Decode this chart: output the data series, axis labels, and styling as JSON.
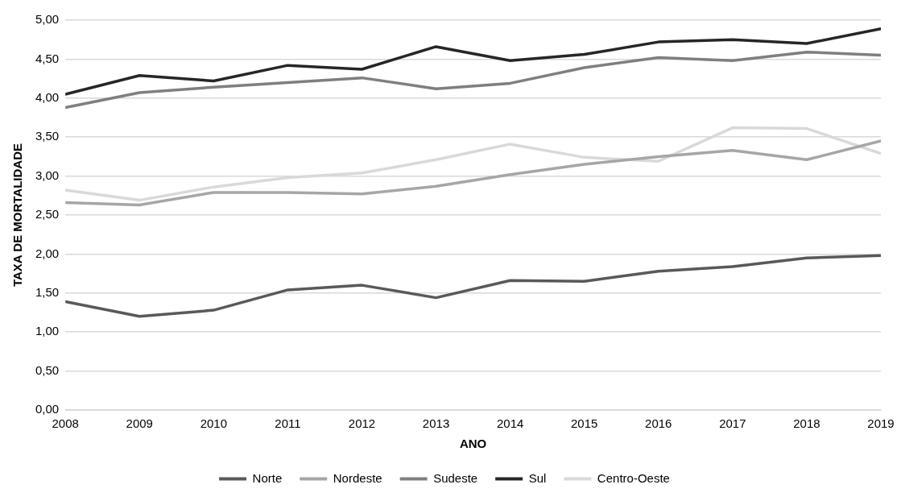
{
  "chart_data": {
    "type": "line",
    "xlabel": "ANO",
    "ylabel": "TAXA DE MORTALIDADE",
    "x": [
      2008,
      2009,
      2010,
      2011,
      2012,
      2013,
      2014,
      2015,
      2016,
      2017,
      2018,
      2019
    ],
    "series": [
      {
        "name": "Norte",
        "color": "#595959",
        "values": [
          1.39,
          1.2,
          1.28,
          1.54,
          1.6,
          1.44,
          1.66,
          1.65,
          1.78,
          1.84,
          1.95,
          1.98
        ]
      },
      {
        "name": "Nordeste",
        "color": "#a6a6a6",
        "values": [
          2.66,
          2.63,
          2.79,
          2.79,
          2.77,
          2.87,
          3.02,
          3.15,
          3.25,
          3.33,
          3.21,
          3.45
        ]
      },
      {
        "name": "Sudeste",
        "color": "#7f7f7f",
        "values": [
          3.88,
          4.07,
          4.14,
          4.2,
          4.26,
          4.12,
          4.19,
          4.39,
          4.52,
          4.48,
          4.59,
          4.55
        ]
      },
      {
        "name": "Sul",
        "color": "#262626",
        "values": [
          4.05,
          4.29,
          4.22,
          4.42,
          4.37,
          4.66,
          4.48,
          4.56,
          4.72,
          4.75,
          4.7,
          4.89
        ]
      },
      {
        "name": "Centro-Oeste",
        "color": "#d9d9d9",
        "values": [
          2.82,
          2.69,
          2.86,
          2.98,
          3.04,
          3.21,
          3.41,
          3.24,
          3.19,
          3.62,
          3.61,
          3.29
        ]
      }
    ],
    "xlim": [
      2008,
      2019
    ],
    "xticks": [
      2008,
      2009,
      2010,
      2011,
      2012,
      2013,
      2014,
      2015,
      2016,
      2017,
      2018,
      2019
    ],
    "ylim": [
      0,
      5
    ],
    "yticks": [
      {
        "value": 0,
        "label": "0,00"
      },
      {
        "value": 0.5,
        "label": "0,50"
      },
      {
        "value": 1,
        "label": "1,00"
      },
      {
        "value": 1.5,
        "label": "1,50"
      },
      {
        "value": 2,
        "label": "2,00"
      },
      {
        "value": 2.5,
        "label": "2,50"
      },
      {
        "value": 3,
        "label": "3,00"
      },
      {
        "value": 3.5,
        "label": "3,50"
      },
      {
        "value": 4,
        "label": "4,00"
      },
      {
        "value": 4.5,
        "label": "4,50"
      },
      {
        "value": 5,
        "label": "5,00"
      }
    ],
    "grid": "y",
    "legend": "bottom",
    "marker": "none",
    "line_style": "solid"
  }
}
